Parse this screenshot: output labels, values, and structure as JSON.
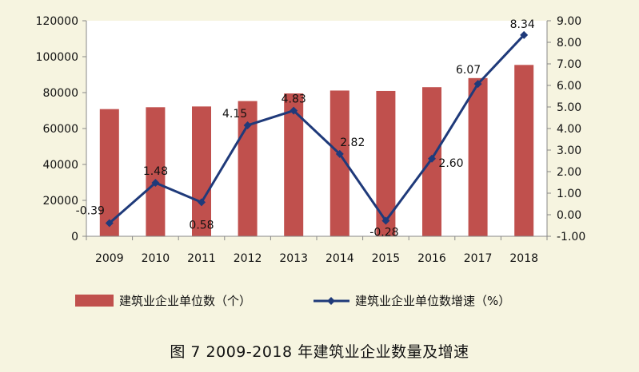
{
  "caption": "图 7   2009-2018 年建筑业企业数量及增速",
  "chart_data": {
    "type": "bar",
    "categories": [
      "2009",
      "2010",
      "2011",
      "2012",
      "2013",
      "2014",
      "2015",
      "2016",
      "2017",
      "2018"
    ],
    "series": [
      {
        "name": "建筑业企业单位数（个）",
        "type": "bar",
        "axis": "left",
        "color": "#c0504d",
        "values": [
          70817,
          71863,
          72280,
          75280,
          79528,
          81141,
          80911,
          83017,
          88074,
          95400
        ]
      },
      {
        "name": "建筑业企业单位数增速（%）",
        "type": "line",
        "axis": "right",
        "color": "#1f3a7a",
        "values": [
          -0.39,
          1.48,
          0.58,
          4.15,
          4.83,
          2.82,
          -0.28,
          2.6,
          6.07,
          8.34
        ],
        "labels": [
          "-0.39",
          "1.48",
          "0.58",
          "4.15",
          "4.83",
          "2.82",
          "-0.28",
          "2.60",
          "6.07",
          "8.34"
        ]
      }
    ],
    "y_left": {
      "min": 0,
      "max": 120000,
      "step": 20000,
      "ticks": [
        "0",
        "20000",
        "40000",
        "60000",
        "80000",
        "100000",
        "120000"
      ]
    },
    "y_right": {
      "min": -1,
      "max": 9,
      "step": 1,
      "ticks": [
        "-1.00",
        "0.00",
        "1.00",
        "2.00",
        "3.00",
        "4.00",
        "5.00",
        "6.00",
        "7.00",
        "8.00",
        "9.00"
      ]
    },
    "grid": false,
    "legend_position": "bottom"
  }
}
